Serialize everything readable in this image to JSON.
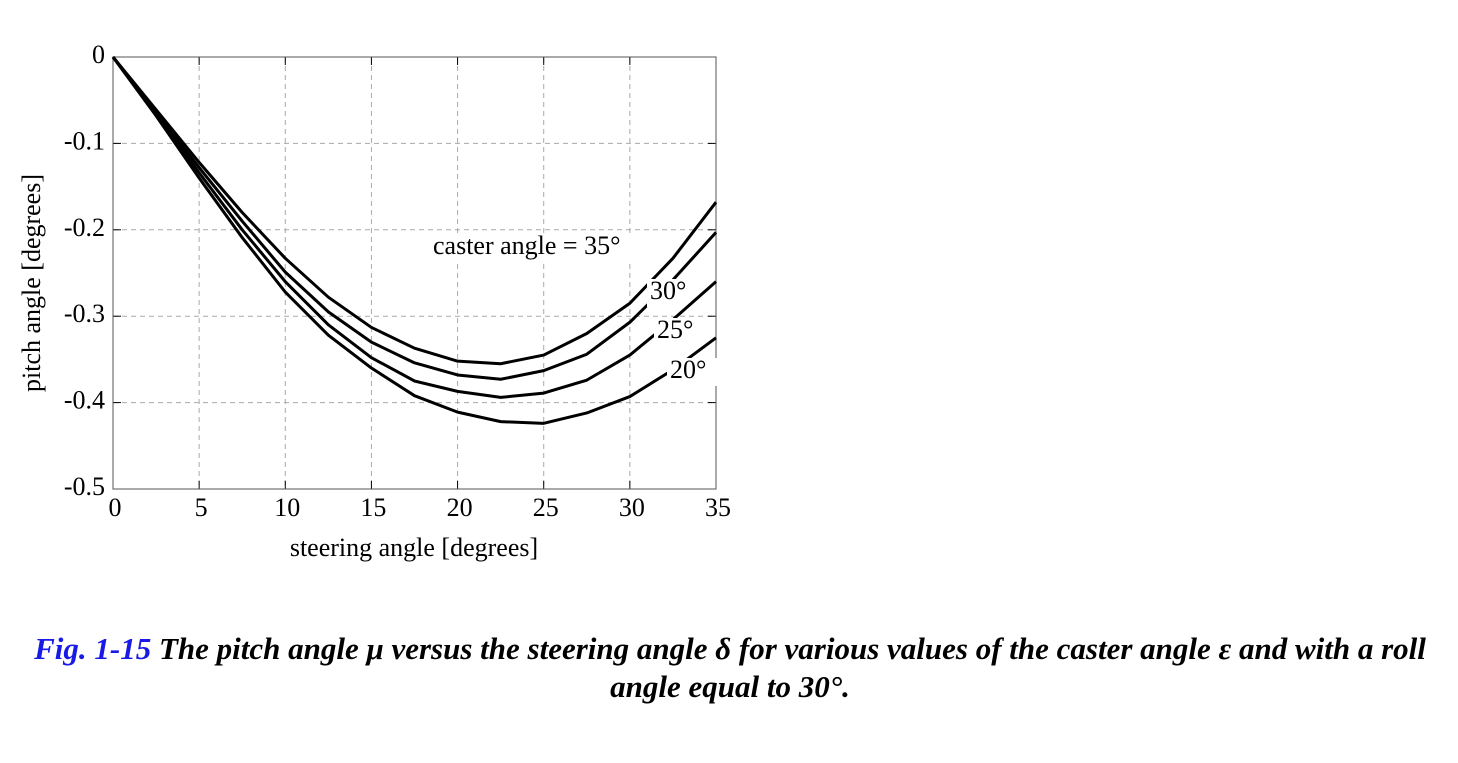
{
  "chart_data": {
    "type": "line",
    "xlabel": "steering angle [degrees]",
    "ylabel": "pitch angle [degrees]",
    "x": [
      0,
      2.5,
      5,
      7.5,
      10,
      12.5,
      15,
      17.5,
      20,
      22.5,
      25,
      27.5,
      30,
      32.5,
      35
    ],
    "series": [
      {
        "name": "caster angle = 35°",
        "color": "#000000",
        "values": [
          0,
          -0.061,
          -0.122,
          -0.18,
          -0.233,
          -0.278,
          -0.313,
          -0.337,
          -0.352,
          -0.355,
          -0.345,
          -0.32,
          -0.285,
          -0.233,
          -0.168
        ]
      },
      {
        "name": "30°",
        "color": "#000000",
        "values": [
          0,
          -0.064,
          -0.128,
          -0.19,
          -0.249,
          -0.295,
          -0.33,
          -0.354,
          -0.368,
          -0.373,
          -0.363,
          -0.344,
          -0.307,
          -0.258,
          -0.203
        ]
      },
      {
        "name": "25°",
        "color": "#000000",
        "values": [
          0,
          -0.066,
          -0.134,
          -0.2,
          -0.26,
          -0.31,
          -0.348,
          -0.375,
          -0.387,
          -0.394,
          -0.389,
          -0.374,
          -0.345,
          -0.304,
          -0.26
        ]
      },
      {
        "name": "20°",
        "color": "#000000",
        "values": [
          0,
          -0.068,
          -0.14,
          -0.209,
          -0.272,
          -0.322,
          -0.36,
          -0.392,
          -0.411,
          -0.422,
          -0.424,
          -0.412,
          -0.393,
          -0.362,
          -0.325
        ]
      }
    ],
    "xlim": [
      0,
      35
    ],
    "xticks": [
      0,
      5,
      10,
      15,
      20,
      25,
      30,
      35
    ],
    "ylim": [
      -0.5,
      0
    ],
    "yticks": [
      0,
      -0.1,
      -0.2,
      -0.3,
      -0.4,
      -0.5
    ],
    "grid": true
  },
  "caption": {
    "label": "Fig. 1-15",
    "text": "The pitch angle μ versus the steering angle δ for various values of the caster angle ε and with a roll angle equal to 30°."
  }
}
